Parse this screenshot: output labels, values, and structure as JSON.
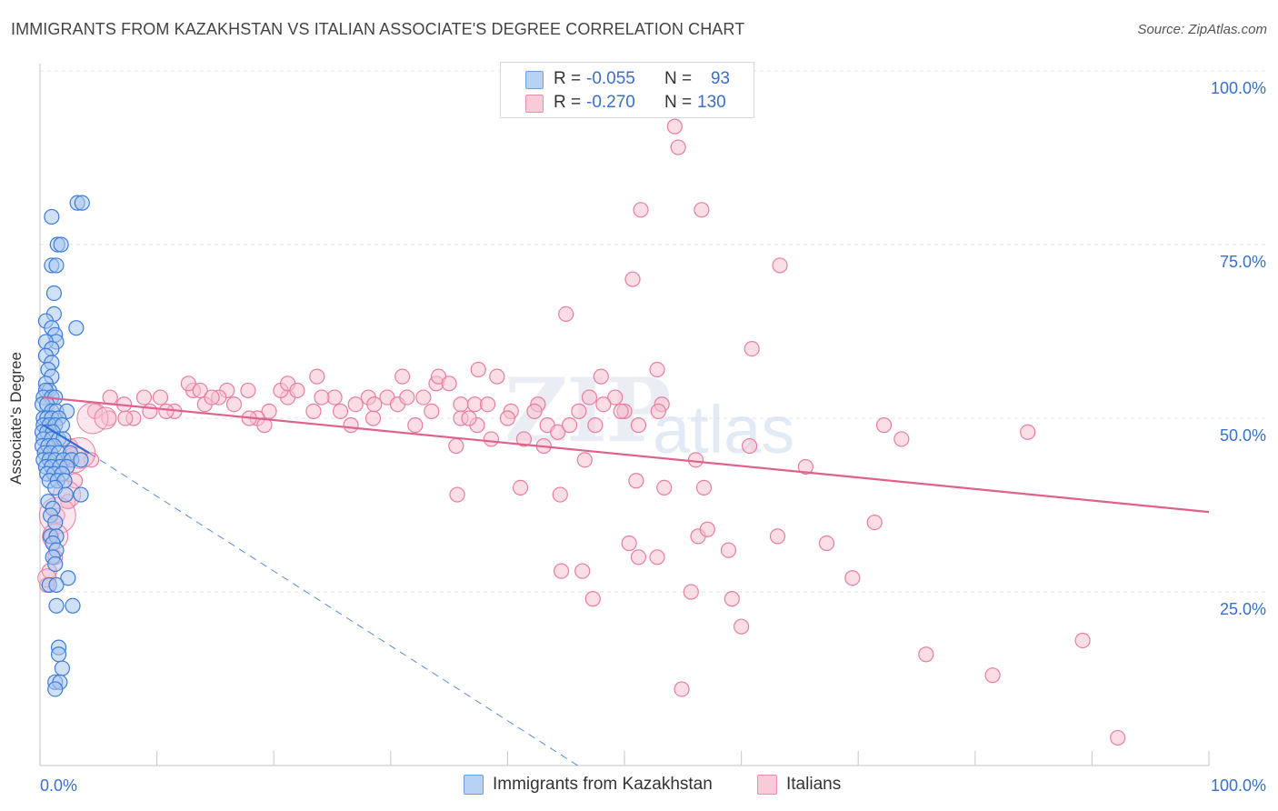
{
  "header": {
    "title": "IMMIGRANTS FROM KAZAKHSTAN VS ITALIAN ASSOCIATE'S DEGREE CORRELATION CHART",
    "source": "Source: ZipAtlas.com"
  },
  "watermark": {
    "zip": "ZIP",
    "atlas": "atlas"
  },
  "legend": {
    "rows": [
      {
        "r_label": "R =",
        "r_value": "-0.055",
        "n_label": "N =",
        "n_value": "93"
      },
      {
        "r_label": "R =",
        "r_value": "-0.270",
        "n_label": "N =",
        "n_value": "130"
      }
    ]
  },
  "bottom_legend": {
    "series1": "Immigrants from Kazakhstan",
    "series2": "Italians"
  },
  "colors": {
    "blue_fill": "#a9c6ee",
    "blue_stroke": "#3b7dd8",
    "blue_line": "#2f6fd0",
    "pink_fill": "#f7c1d1",
    "pink_stroke": "#e77ea0",
    "pink_line": "#e0608e",
    "axis_text": "#3a6fc9",
    "grid": "#e3e3e3"
  },
  "chart_data": {
    "type": "scatter",
    "title": "IMMIGRANTS FROM KAZAKHSTAN VS ITALIAN ASSOCIATE'S DEGREE CORRELATION CHART",
    "xlabel": "",
    "ylabel": "Associate's Degree",
    "xlim": [
      0,
      100
    ],
    "ylim": [
      0,
      100
    ],
    "x_tick_labels": [
      "0.0%",
      "100.0%"
    ],
    "y_ticks": [
      25,
      50,
      75,
      100
    ],
    "y_tick_labels": [
      "25.0%",
      "50.0%",
      "75.0%",
      "100.0%"
    ],
    "grid": true,
    "series": [
      {
        "name": "Immigrants from Kazakhstan",
        "color": "#3b7dd8",
        "R": -0.055,
        "N": 93,
        "trend_solid": {
          "x": [
            0.3,
            4.2
          ],
          "y": [
            49.0,
            45.0
          ]
        },
        "trend_dashed": {
          "x": [
            4.2,
            46.0
          ],
          "y": [
            45.0,
            0.0
          ]
        },
        "points": [
          [
            1.0,
            79
          ],
          [
            3.2,
            81
          ],
          [
            3.6,
            81
          ],
          [
            1.5,
            75
          ],
          [
            1.8,
            75
          ],
          [
            1.0,
            72
          ],
          [
            1.4,
            72
          ],
          [
            1.2,
            68
          ],
          [
            1.2,
            65
          ],
          [
            3.1,
            63
          ],
          [
            0.5,
            64
          ],
          [
            1.0,
            63
          ],
          [
            1.3,
            62
          ],
          [
            1.4,
            61
          ],
          [
            0.5,
            61
          ],
          [
            1.0,
            60
          ],
          [
            0.5,
            59
          ],
          [
            1.0,
            58
          ],
          [
            0.7,
            57
          ],
          [
            1.0,
            56
          ],
          [
            0.5,
            55
          ],
          [
            0.8,
            54
          ],
          [
            0.5,
            54
          ],
          [
            0.3,
            53
          ],
          [
            1.0,
            53
          ],
          [
            1.3,
            53
          ],
          [
            0.2,
            52
          ],
          [
            0.6,
            52
          ],
          [
            1.0,
            51
          ],
          [
            1.4,
            51
          ],
          [
            2.3,
            51
          ],
          [
            0.3,
            50
          ],
          [
            0.6,
            50
          ],
          [
            1.0,
            50
          ],
          [
            1.6,
            50
          ],
          [
            0.3,
            49
          ],
          [
            0.8,
            49
          ],
          [
            1.3,
            49
          ],
          [
            1.9,
            49
          ],
          [
            0.2,
            48
          ],
          [
            0.6,
            48
          ],
          [
            1.1,
            48
          ],
          [
            0.3,
            47
          ],
          [
            1.0,
            47
          ],
          [
            1.6,
            47
          ],
          [
            2.0,
            47
          ],
          [
            0.2,
            46
          ],
          [
            0.7,
            46
          ],
          [
            1.2,
            46
          ],
          [
            0.4,
            45
          ],
          [
            0.9,
            45
          ],
          [
            1.6,
            45
          ],
          [
            2.6,
            45
          ],
          [
            0.3,
            44
          ],
          [
            0.8,
            44
          ],
          [
            1.3,
            44
          ],
          [
            2.0,
            44
          ],
          [
            2.7,
            44
          ],
          [
            3.5,
            44
          ],
          [
            0.5,
            43
          ],
          [
            1.0,
            43
          ],
          [
            1.7,
            43
          ],
          [
            2.3,
            43
          ],
          [
            0.6,
            42
          ],
          [
            1.2,
            42
          ],
          [
            1.9,
            42
          ],
          [
            0.8,
            41
          ],
          [
            1.5,
            41
          ],
          [
            2.1,
            41
          ],
          [
            1.3,
            40
          ],
          [
            2.2,
            39
          ],
          [
            3.5,
            39
          ],
          [
            0.7,
            38
          ],
          [
            1.1,
            37
          ],
          [
            0.9,
            36
          ],
          [
            1.3,
            35
          ],
          [
            0.9,
            33
          ],
          [
            1.4,
            33
          ],
          [
            1.1,
            32
          ],
          [
            1.4,
            31
          ],
          [
            1.1,
            30
          ],
          [
            1.3,
            29
          ],
          [
            2.4,
            27
          ],
          [
            0.8,
            26
          ],
          [
            1.4,
            26
          ],
          [
            1.4,
            23
          ],
          [
            2.8,
            23
          ],
          [
            1.6,
            17
          ],
          [
            1.6,
            16
          ],
          [
            1.9,
            14
          ],
          [
            1.3,
            12
          ],
          [
            1.7,
            12
          ],
          [
            1.3,
            11
          ]
        ]
      },
      {
        "name": "Italians",
        "color": "#e77ea0",
        "R": -0.27,
        "N": 130,
        "trend_solid": {
          "x": [
            0.3,
            100.0
          ],
          "y": [
            53.0,
            36.5
          ]
        },
        "points": [
          [
            54.3,
            92
          ],
          [
            54.6,
            89
          ],
          [
            51.4,
            80
          ],
          [
            56.6,
            80
          ],
          [
            50.7,
            70
          ],
          [
            63.3,
            72
          ],
          [
            45.0,
            65
          ],
          [
            52.8,
            57
          ],
          [
            60.9,
            60
          ],
          [
            39.1,
            56
          ],
          [
            37.5,
            57
          ],
          [
            48.0,
            56
          ],
          [
            47.0,
            53
          ],
          [
            50.0,
            51
          ],
          [
            53.2,
            52
          ],
          [
            56.8,
            40
          ],
          [
            42.6,
            52
          ],
          [
            37.2,
            52
          ],
          [
            36.0,
            52
          ],
          [
            32.8,
            53
          ],
          [
            33.9,
            55
          ],
          [
            33.5,
            51
          ],
          [
            32.1,
            49
          ],
          [
            28.5,
            50
          ],
          [
            29.7,
            53
          ],
          [
            28.1,
            53
          ],
          [
            27.0,
            52
          ],
          [
            25.2,
            53
          ],
          [
            24.1,
            53
          ],
          [
            23.7,
            56
          ],
          [
            21.2,
            53
          ],
          [
            20.6,
            54
          ],
          [
            21.2,
            55
          ],
          [
            19.6,
            51
          ],
          [
            18.6,
            50
          ],
          [
            17.8,
            54
          ],
          [
            16.0,
            54
          ],
          [
            14.1,
            52
          ],
          [
            15.3,
            53
          ],
          [
            13.1,
            54
          ],
          [
            11.5,
            51
          ],
          [
            10.8,
            51
          ],
          [
            9.4,
            51
          ],
          [
            8.0,
            50
          ],
          [
            7.3,
            50
          ],
          [
            5.9,
            50
          ],
          [
            4.7,
            51
          ],
          [
            6.0,
            53
          ],
          [
            7.2,
            52
          ],
          [
            8.9,
            53
          ],
          [
            10.3,
            53
          ],
          [
            12.7,
            55
          ],
          [
            13.7,
            54
          ],
          [
            14.7,
            53
          ],
          [
            16.6,
            52
          ],
          [
            17.9,
            50
          ],
          [
            19.2,
            49
          ],
          [
            22.0,
            54
          ],
          [
            23.4,
            51
          ],
          [
            25.7,
            51
          ],
          [
            26.6,
            49
          ],
          [
            28.6,
            52
          ],
          [
            30.6,
            52
          ],
          [
            31.4,
            53
          ],
          [
            31.0,
            56
          ],
          [
            34.1,
            56
          ],
          [
            35.0,
            55
          ],
          [
            36.0,
            50
          ],
          [
            37.4,
            49
          ],
          [
            38.3,
            52
          ],
          [
            40.3,
            51
          ],
          [
            42.3,
            51
          ],
          [
            43.4,
            49
          ],
          [
            44.3,
            48
          ],
          [
            45.3,
            49
          ],
          [
            46.1,
            51
          ],
          [
            47.5,
            49
          ],
          [
            49.2,
            53
          ],
          [
            36.7,
            50
          ],
          [
            35.6,
            46
          ],
          [
            38.6,
            47
          ],
          [
            40.0,
            50
          ],
          [
            41.4,
            47
          ],
          [
            43.1,
            46
          ],
          [
            46.6,
            44
          ],
          [
            48.2,
            52
          ],
          [
            49.7,
            51
          ],
          [
            51.2,
            49
          ],
          [
            52.9,
            51
          ],
          [
            56.1,
            44
          ],
          [
            60.7,
            46
          ],
          [
            65.5,
            43
          ],
          [
            72.2,
            49
          ],
          [
            73.7,
            47
          ],
          [
            84.5,
            48
          ],
          [
            35.7,
            39
          ],
          [
            41.1,
            40
          ],
          [
            44.5,
            39
          ],
          [
            51.0,
            41
          ],
          [
            53.4,
            40
          ],
          [
            44.6,
            28
          ],
          [
            46.4,
            28
          ],
          [
            47.3,
            24
          ],
          [
            50.4,
            32
          ],
          [
            51.2,
            30
          ],
          [
            52.8,
            30
          ],
          [
            55.7,
            25
          ],
          [
            56.3,
            33
          ],
          [
            57.1,
            34
          ],
          [
            59.2,
            24
          ],
          [
            60.0,
            20
          ],
          [
            58.9,
            31
          ],
          [
            63.1,
            33
          ],
          [
            67.3,
            32
          ],
          [
            69.5,
            27
          ],
          [
            71.4,
            35
          ],
          [
            75.8,
            16
          ],
          [
            81.5,
            13
          ],
          [
            89.2,
            18
          ],
          [
            92.2,
            4
          ],
          [
            54.9,
            11
          ],
          [
            4.4,
            44
          ],
          [
            2.6,
            46
          ],
          [
            2.3,
            44
          ],
          [
            1.8,
            43
          ],
          [
            3.0,
            41
          ],
          [
            2.4,
            38
          ],
          [
            1.5,
            36
          ],
          [
            1.0,
            33
          ],
          [
            1.3,
            30
          ],
          [
            0.6,
            26
          ],
          [
            0.8,
            28
          ]
        ]
      }
    ]
  }
}
